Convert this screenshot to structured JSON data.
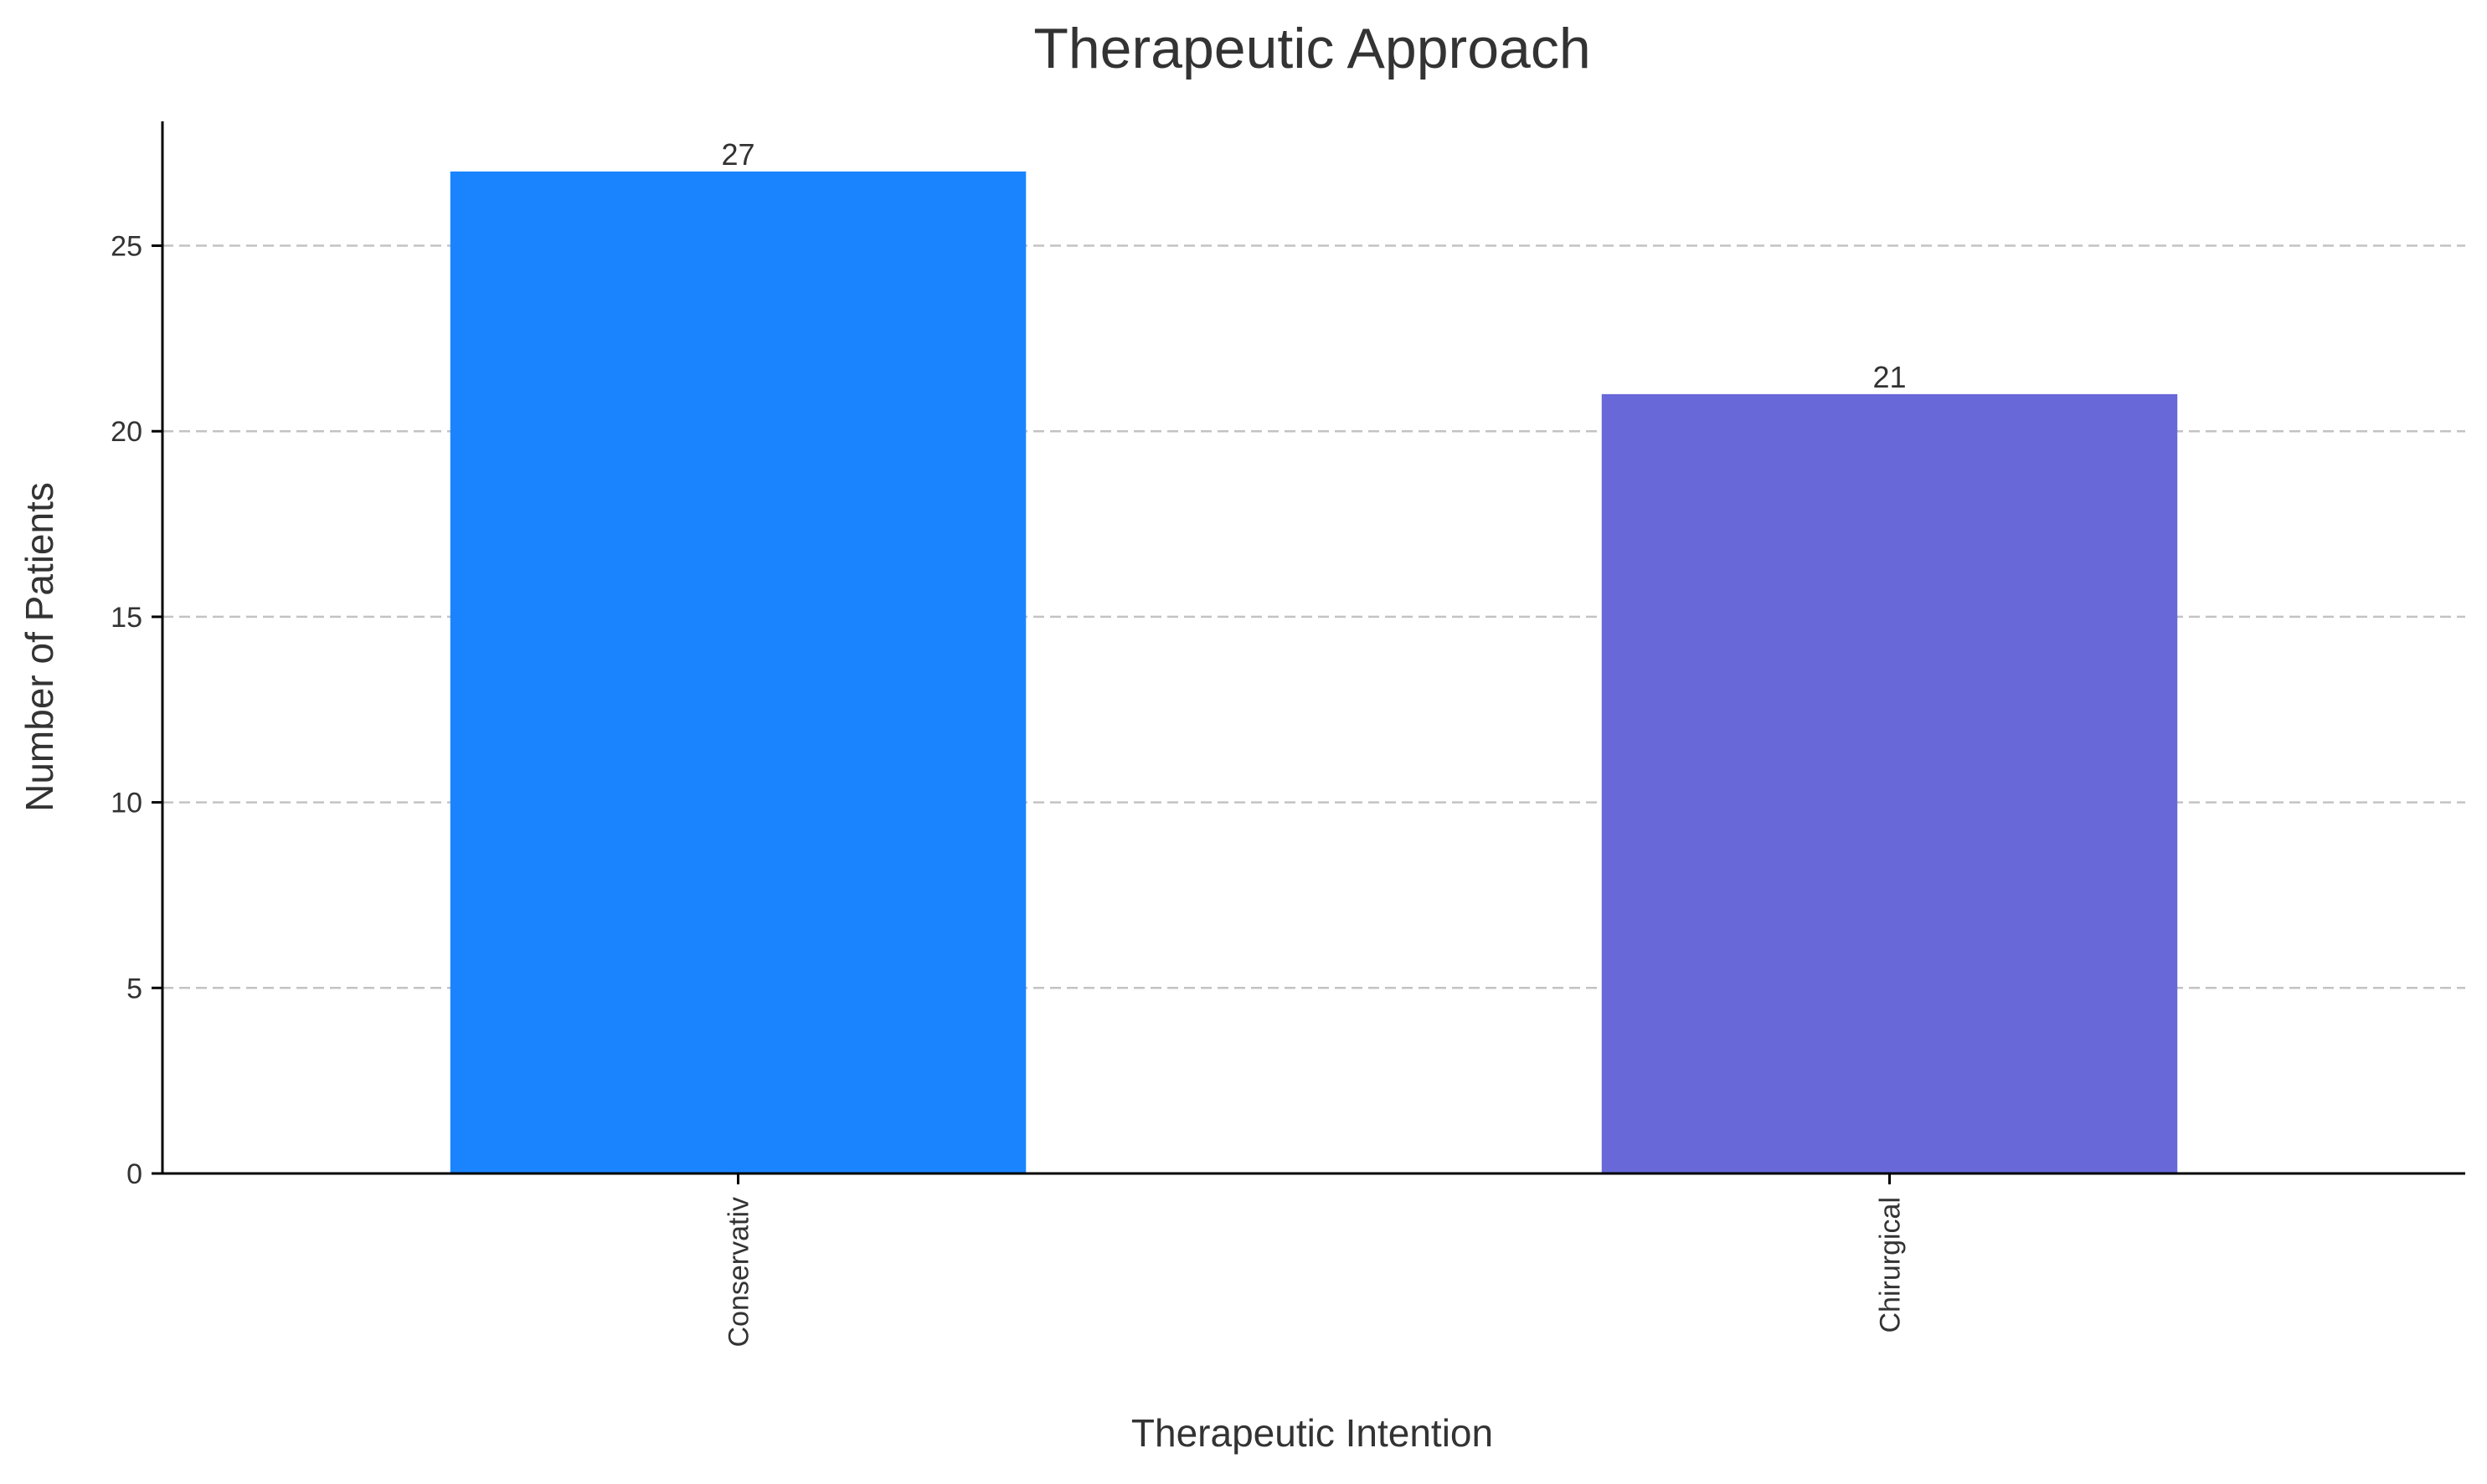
{
  "chart_data": {
    "type": "bar",
    "title": "Therapeutic Approach",
    "xlabel": "Therapeutic Intention",
    "ylabel": "Number of Patients",
    "categories": [
      "Conservativ",
      "Chirurgical"
    ],
    "values": [
      27,
      21
    ],
    "bar_colors": [
      "#1a84ff",
      "#6868d8"
    ],
    "ylim": [
      0,
      28.35
    ],
    "yticks": [
      0,
      5,
      10,
      15,
      20,
      25
    ],
    "grid": "y-dashed",
    "legend": "none",
    "data_labels": true
  }
}
